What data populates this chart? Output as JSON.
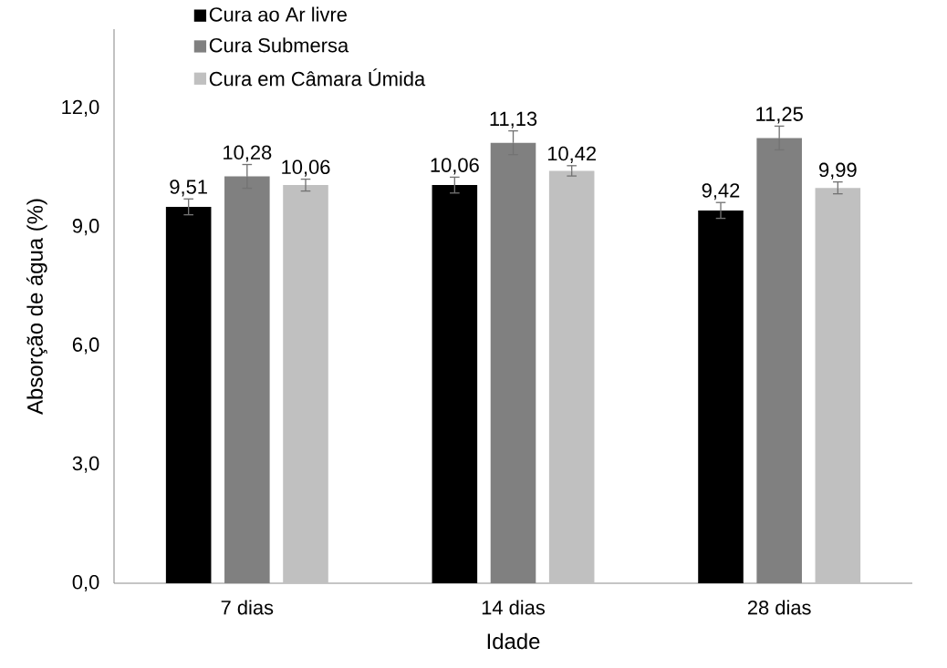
{
  "chart_data": {
    "type": "bar",
    "xlabel": "Idade",
    "ylabel": "Absorção de água (%)",
    "categories": [
      "7 dias",
      "14 dias",
      "28 dias"
    ],
    "series": [
      {
        "name": "Cura ao Ar livre",
        "color": "#000000",
        "values": [
          9.51,
          10.06,
          9.42
        ],
        "errors": [
          0.2,
          0.2,
          0.2
        ],
        "value_labels": [
          "9,51",
          "10,06",
          "9,42"
        ]
      },
      {
        "name": "Cura Submersa",
        "color": "#808080",
        "values": [
          10.28,
          11.13,
          11.25
        ],
        "errors": [
          0.3,
          0.3,
          0.3
        ],
        "value_labels": [
          "10,28",
          "11,13",
          "11,25"
        ]
      },
      {
        "name": "Cura em Câmara Úmida",
        "color": "#c0c0c0",
        "values": [
          10.06,
          10.42,
          9.99
        ],
        "errors": [
          0.15,
          0.13,
          0.15
        ],
        "value_labels": [
          "10,06",
          "10,42",
          "9,99"
        ]
      }
    ],
    "ylim": [
      0,
      14
    ],
    "yticks": [
      {
        "value": 0,
        "label": "0,0"
      },
      {
        "value": 3,
        "label": "3,0"
      },
      {
        "value": 6,
        "label": "6,0"
      },
      {
        "value": 9,
        "label": "9,0"
      },
      {
        "value": 12,
        "label": "12,0"
      }
    ],
    "grid": false,
    "legend": "top left"
  }
}
